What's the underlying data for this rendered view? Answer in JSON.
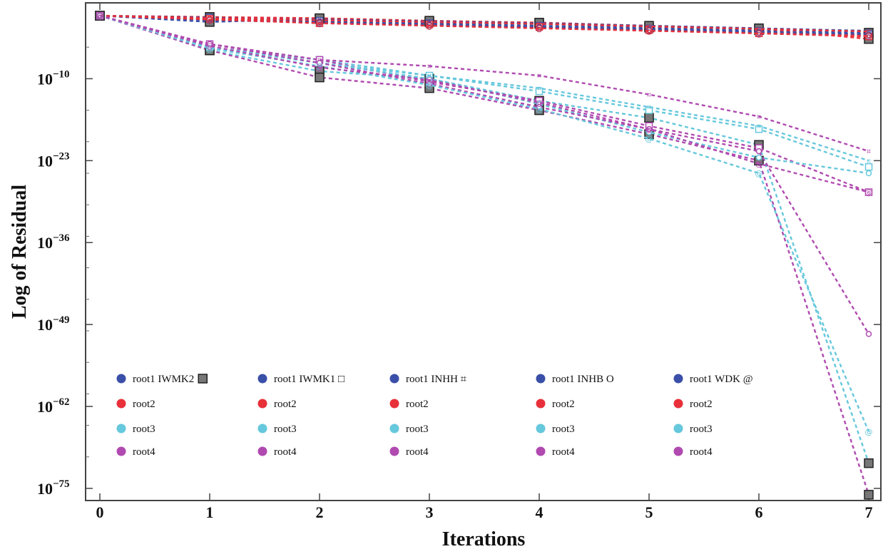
{
  "chart_data": {
    "type": "line",
    "xlabel": "Iterations",
    "ylabel": "Log of Residual",
    "x": [
      0,
      1,
      2,
      3,
      4,
      5,
      6,
      7
    ],
    "x_ticks": [
      "0",
      "1",
      "2",
      "3",
      "4",
      "5",
      "6",
      "7"
    ],
    "y_scale": "log",
    "ylim_exponent": [
      -77,
      1
    ],
    "y_ticks": [
      {
        "exp": -10,
        "base": "10",
        "sup": "−10"
      },
      {
        "exp": -23,
        "base": "10",
        "sup": "−23"
      },
      {
        "exp": -36,
        "base": "10",
        "sup": "−36"
      },
      {
        "exp": -49,
        "base": "10",
        "sup": "−49"
      },
      {
        "exp": -62,
        "base": "10",
        "sup": "−62"
      },
      {
        "exp": -75,
        "base": "10",
        "sup": "−75"
      }
    ],
    "colors": {
      "root1": "#3a4fa8",
      "root2": "#e8303a",
      "root3": "#66c8dc",
      "root4": "#b04ab0"
    },
    "methods": [
      {
        "name": "IWMK2",
        "marker": "■",
        "series": {
          "root1": [
            0,
            -1,
            -0.5,
            -1,
            -1.3,
            -1.9,
            -2.3,
            -2.7
          ],
          "root2": [
            0,
            -0.2,
            -0.4,
            -0.8,
            -1.1,
            -1.6,
            -2.0,
            -3.7
          ],
          "root3": [
            0,
            -5.5,
            -8.8,
            -10.0,
            -13.5,
            -16.2,
            -20.5,
            -71.0
          ],
          "root4": [
            0,
            -5.5,
            -9.8,
            -11.5,
            -15.0,
            -18.8,
            -23.0,
            -76.0
          ]
        }
      },
      {
        "name": "IWMK1",
        "marker": "□",
        "series": {
          "root1": [
            0,
            -0.3,
            -0.8,
            -1.2,
            -1.6,
            -2.1,
            -2.5,
            -2.9
          ],
          "root2": [
            0,
            -0.5,
            -1.2,
            -1.4,
            -1.8,
            -2.3,
            -2.8,
            -3.3
          ],
          "root3": [
            0,
            -5.0,
            -7.0,
            -9.5,
            -12.0,
            -15.0,
            -18.0,
            -24.0
          ],
          "root4": [
            0,
            -4.5,
            -7.0,
            -10.5,
            -13.5,
            -17.5,
            -21.0,
            -28.0
          ]
        }
      },
      {
        "name": "INHH",
        "marker": "⌗",
        "series": {
          "root1": [
            0,
            -0.5,
            -0.6,
            -0.9,
            -1.2,
            -1.6,
            -2.0,
            -2.4
          ],
          "root2": [
            0,
            -0.4,
            -0.7,
            -1.0,
            -1.3,
            -1.7,
            -2.1,
            -2.5
          ],
          "root3": [
            0,
            -5.0,
            -7.5,
            -9.5,
            -11.5,
            -14.5,
            -17.5,
            -23.0
          ],
          "root4": [
            0,
            -4.5,
            -7.0,
            -8.0,
            -9.5,
            -12.5,
            -16.0,
            -21.5
          ]
        }
      },
      {
        "name": "INHB",
        "marker": "O",
        "series": {
          "root1": [
            0,
            -0.6,
            -1.0,
            -1.4,
            -1.8,
            -2.2,
            -2.6,
            -3.0
          ],
          "root2": [
            0,
            -0.5,
            -1.1,
            -1.5,
            -1.9,
            -2.3,
            -2.7,
            -3.1
          ],
          "root3": [
            0,
            -5.0,
            -7.5,
            -10.0,
            -14.0,
            -18.5,
            -22.5,
            -25.0
          ],
          "root4": [
            0,
            -4.5,
            -7.5,
            -10.8,
            -14.5,
            -18.0,
            -21.5,
            -50.5
          ]
        }
      },
      {
        "name": "WDK",
        "marker": "@",
        "series": {
          "root1": [
            0,
            -0.7,
            -1.1,
            -1.5,
            -1.9,
            -2.3,
            -2.7,
            -3.1
          ],
          "root2": [
            0,
            -0.6,
            -1.2,
            -1.6,
            -2.0,
            -2.4,
            -2.8,
            -3.2
          ],
          "root3": [
            0,
            -5.2,
            -8.0,
            -11.0,
            -14.8,
            -19.5,
            -25.0,
            -66.0
          ],
          "root4": [
            0,
            -4.8,
            -8.2,
            -10.2,
            -13.8,
            -18.0,
            -23.5,
            -28.0
          ]
        }
      }
    ],
    "legend": {
      "placement": "bottom-left",
      "columns": [
        {
          "entries": [
            {
              "key": "root1",
              "label": "root1 IWMK2",
              "marker": "■"
            },
            {
              "key": "root2",
              "label": "root2"
            },
            {
              "key": "root3",
              "label": "root3"
            },
            {
              "key": "root4",
              "label": "root4"
            }
          ]
        },
        {
          "entries": [
            {
              "key": "root1",
              "label": "root1 IWMK1 □"
            },
            {
              "key": "root2",
              "label": "root2"
            },
            {
              "key": "root3",
              "label": "root3"
            },
            {
              "key": "root4",
              "label": "root4"
            }
          ]
        },
        {
          "entries": [
            {
              "key": "root1",
              "label": "root1 INHH ⌗"
            },
            {
              "key": "root2",
              "label": "root2"
            },
            {
              "key": "root3",
              "label": "root3"
            },
            {
              "key": "root4",
              "label": "root4"
            }
          ]
        },
        {
          "entries": [
            {
              "key": "root1",
              "label": "root1 INHB O"
            },
            {
              "key": "root2",
              "label": "root2"
            },
            {
              "key": "root3",
              "label": "root3"
            },
            {
              "key": "root4",
              "label": "root4"
            }
          ]
        },
        {
          "entries": [
            {
              "key": "root1",
              "label": "root1 WDK @"
            },
            {
              "key": "root2",
              "label": "root2"
            },
            {
              "key": "root3",
              "label": "root3"
            },
            {
              "key": "root4",
              "label": "root4"
            }
          ]
        }
      ]
    }
  }
}
